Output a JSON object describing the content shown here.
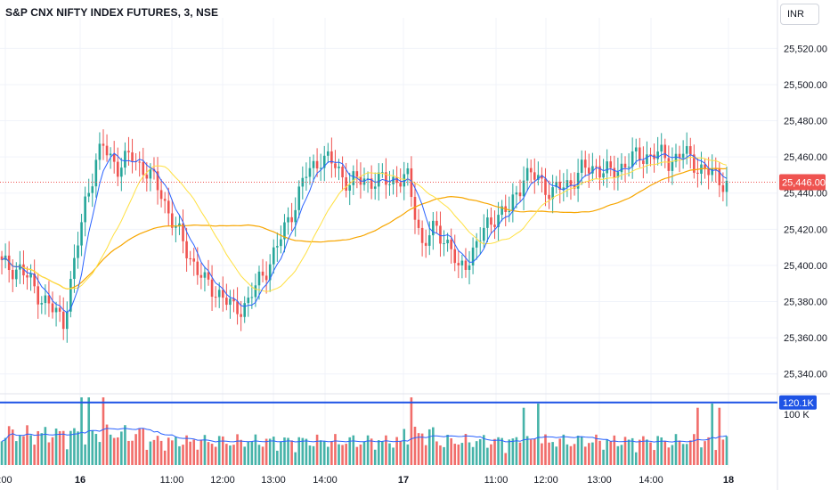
{
  "header": {
    "title": "S&P CNX NIFTY INDEX FUTURES, 3, NSE",
    "currency": "INR"
  },
  "colors": {
    "up": "#26a69a",
    "down": "#ef5350",
    "grid": "#f0f3fa",
    "axis_text": "#131722",
    "ma_fast": "#2962ff",
    "ma_mid": "#ffe040",
    "ma_slow": "#f7a600",
    "volume_ma": "#2962ff",
    "price_tag": "#ef5350",
    "volume_line": "#1e53e5"
  },
  "chart_data": {
    "type": "candlestick",
    "y_ticks": [
      "25,520.00",
      "25,500.00",
      "25,480.00",
      "25,460.00",
      "25,440.00",
      "25,420.00",
      "25,400.00",
      "25,380.00",
      "25,360.00",
      "25,340.00"
    ],
    "ylim": [
      25330,
      25532
    ],
    "x_ticks": [
      ":00",
      "16",
      "11:00",
      "12:00",
      "13:00",
      "14:00",
      "17",
      "11:00",
      "12:00",
      "13:00",
      "14:00",
      "18"
    ],
    "last_price": 25446.0,
    "last_price_label": "25,446.00",
    "volume_label": "120.1K",
    "volume_tick_label": "100 K",
    "volume_max": 130000,
    "volume_line_value": 120100,
    "key_prices": [
      {
        "bar": 0,
        "close": 25400
      },
      {
        "bar": 5,
        "close": 25398
      },
      {
        "bar": 10,
        "close": 25385
      },
      {
        "bar": 14,
        "close": 25375
      },
      {
        "bar": 17,
        "close": 25370
      },
      {
        "bar": 20,
        "close": 25400
      },
      {
        "bar": 23,
        "close": 25435
      },
      {
        "bar": 26,
        "close": 25458
      },
      {
        "bar": 28,
        "close": 25465
      },
      {
        "bar": 32,
        "close": 25455
      },
      {
        "bar": 36,
        "close": 25460
      },
      {
        "bar": 40,
        "close": 25452
      },
      {
        "bar": 44,
        "close": 25440
      },
      {
        "bar": 48,
        "close": 25420
      },
      {
        "bar": 52,
        "close": 25405
      },
      {
        "bar": 56,
        "close": 25390
      },
      {
        "bar": 60,
        "close": 25385
      },
      {
        "bar": 64,
        "close": 25375
      },
      {
        "bar": 68,
        "close": 25380
      },
      {
        "bar": 72,
        "close": 25395
      },
      {
        "bar": 76,
        "close": 25410
      },
      {
        "bar": 80,
        "close": 25430
      },
      {
        "bar": 84,
        "close": 25450
      },
      {
        "bar": 88,
        "close": 25460
      },
      {
        "bar": 92,
        "close": 25455
      },
      {
        "bar": 96,
        "close": 25445
      },
      {
        "bar": 100,
        "close": 25448
      },
      {
        "bar": 104,
        "close": 25446
      },
      {
        "bar": 108,
        "close": 25448
      },
      {
        "bar": 112,
        "close": 25447
      },
      {
        "bar": 114,
        "close": 25430
      },
      {
        "bar": 116,
        "close": 25412
      },
      {
        "bar": 120,
        "close": 25420
      },
      {
        "bar": 124,
        "close": 25410
      },
      {
        "bar": 126,
        "close": 25395
      },
      {
        "bar": 128,
        "close": 25402
      },
      {
        "bar": 132,
        "close": 25415
      },
      {
        "bar": 136,
        "close": 25428
      },
      {
        "bar": 140,
        "close": 25430
      },
      {
        "bar": 144,
        "close": 25450
      },
      {
        "bar": 148,
        "close": 25448
      },
      {
        "bar": 152,
        "close": 25440
      },
      {
        "bar": 156,
        "close": 25445
      },
      {
        "bar": 160,
        "close": 25452
      },
      {
        "bar": 164,
        "close": 25455
      },
      {
        "bar": 168,
        "close": 25450
      },
      {
        "bar": 172,
        "close": 25457
      },
      {
        "bar": 176,
        "close": 25460
      },
      {
        "bar": 180,
        "close": 25462
      },
      {
        "bar": 184,
        "close": 25458
      },
      {
        "bar": 188,
        "close": 25462
      },
      {
        "bar": 192,
        "close": 25455
      },
      {
        "bar": 196,
        "close": 25450
      },
      {
        "bar": 200,
        "close": 25446
      }
    ]
  }
}
